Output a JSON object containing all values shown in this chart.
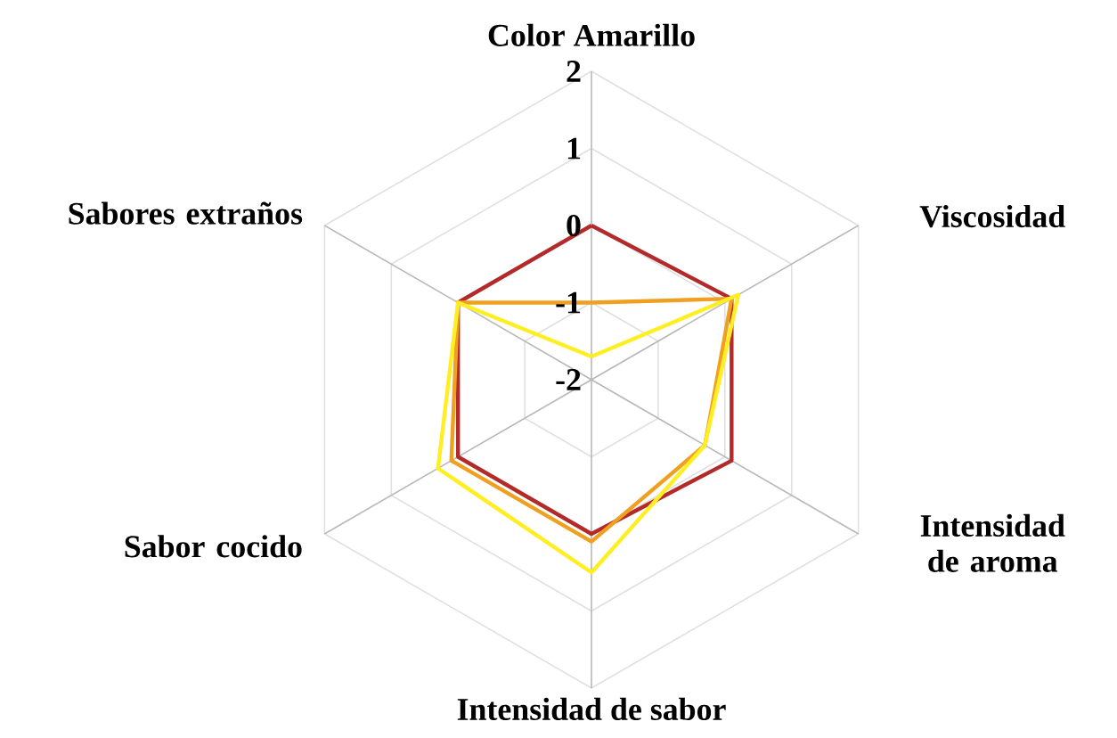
{
  "chart_data": {
    "type": "radar",
    "categories": [
      "Color Amarillo",
      "Viscosidad",
      "Intensidad de aroma",
      "Intensidad de sabor",
      "Sabor cocido",
      "Sabores extraños"
    ],
    "series": [
      {
        "color": "#b22a2a",
        "values": [
          0,
          0.1,
          0.1,
          0,
          0,
          0
        ]
      },
      {
        "color": "#f0a020",
        "values": [
          -1,
          0.1,
          -0.3,
          0.1,
          0.1,
          0
        ]
      },
      {
        "color": "#ffee22",
        "values": [
          -1.7,
          0.2,
          -0.3,
          0.5,
          0.3,
          0
        ]
      }
    ],
    "ylim": [
      -2,
      2
    ],
    "yticks": [
      -2,
      -1,
      0,
      1,
      2
    ],
    "grid": true
  }
}
